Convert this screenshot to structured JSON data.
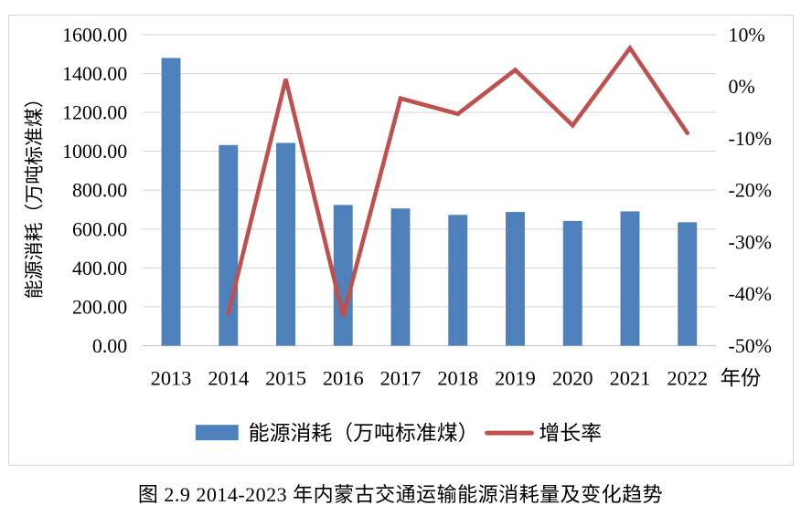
{
  "caption": "图 2.9 2014-2023 年内蒙古交通运输能源消耗量及变化趋势",
  "chart_data": {
    "type": "bar",
    "subtype": "bar+line combo, dual axis",
    "categories": [
      "2013",
      "2014",
      "2015",
      "2016",
      "2017",
      "2018",
      "2019",
      "2020",
      "2021",
      "2022"
    ],
    "series": [
      {
        "name": "能源消耗（万吨标准煤）",
        "type": "bar",
        "axis": "left",
        "color": "#4e81bc",
        "values": [
          1480,
          1032,
          1043,
          724,
          706,
          673,
          688,
          642,
          691,
          635
        ]
      },
      {
        "name": "增长率",
        "type": "line",
        "axis": "right",
        "color": "#c0504d",
        "values": [
          null,
          -43.7,
          1.4,
          -44.3,
          -2.3,
          -5.3,
          3.2,
          -7.5,
          7.4,
          -9.0
        ]
      }
    ],
    "left_axis": {
      "title": "能源消耗（万吨标准煤）",
      "min": 0,
      "max": 1600,
      "step": 200,
      "tick_labels_top_to_bottom": [
        "1600.00",
        "1400.00",
        "1200.00",
        "1000.00",
        "800.00",
        "600.00",
        "400.00",
        "200.00",
        "0.00"
      ]
    },
    "right_axis": {
      "min": -50,
      "max": 10,
      "step": 10,
      "tick_labels_top_to_bottom": [
        "10%",
        "0%",
        "-10%",
        "-20%",
        "-30%",
        "-40%",
        "-50%"
      ]
    },
    "x_axis": {
      "label": "年份"
    },
    "grid": true,
    "legend_position": "bottom",
    "colors": {
      "bar": "#4e81bc",
      "line": "#c0504d",
      "grid": "#d9d9d9",
      "axis_line": "#c9c9c9",
      "text": "#000000",
      "frame_border": "#d6d6d6",
      "background": "#ffffff"
    }
  }
}
